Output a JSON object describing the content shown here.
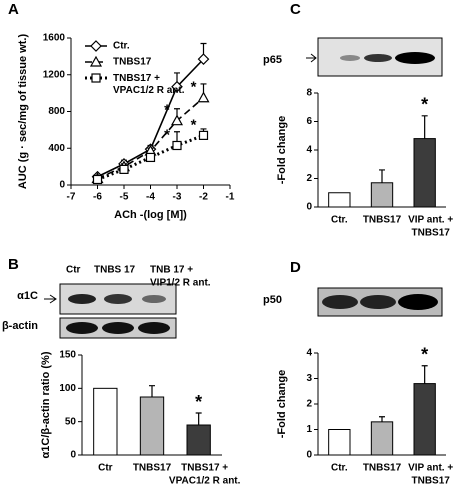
{
  "chart_data": [
    {
      "type": "line",
      "panel": "A",
      "ylabel": "AUC (g · sec/mg of tissue wt.)",
      "xlabel": "ACh -(log [M])",
      "x": [
        -6,
        -5,
        -4,
        -3,
        -2
      ],
      "xlim": [
        -7,
        -1
      ],
      "xticks": [
        -7,
        -6,
        -5,
        -4,
        -3,
        -2,
        -1
      ],
      "ylim": [
        0,
        1600
      ],
      "yticks": [
        0,
        400,
        800,
        1200,
        1600
      ],
      "series": [
        {
          "name": "Ctr.",
          "color": "#000000",
          "dash": "none",
          "marker": "diamond",
          "values": [
            90,
            230,
            390,
            1070,
            1370
          ],
          "errors": [
            20,
            40,
            40,
            150,
            170
          ]
        },
        {
          "name": "TNBS17",
          "color": "#000000",
          "dash": "7,4",
          "marker": "triangle",
          "values": [
            70,
            200,
            370,
            700,
            950
          ],
          "errors": [
            20,
            30,
            30,
            130,
            150
          ]
        },
        {
          "name": "TNBS17 + VPAC1/2 R ant.",
          "color": "#000000",
          "dash": "2,3",
          "marker": "square",
          "values": [
            60,
            170,
            300,
            430,
            540
          ],
          "errors": [
            20,
            30,
            40,
            150,
            70
          ]
        }
      ],
      "annotations": [
        {
          "text": "*",
          "series": "TNBS17",
          "x": -3
        },
        {
          "text": "*",
          "series": "TNBS17 + VPAC1/2 R ant.",
          "x": -3
        },
        {
          "text": "*",
          "series": "TNBS17",
          "x": -2
        },
        {
          "text": "*",
          "series": "TNBS17 + VPAC1/2 R ant.",
          "x": -2
        }
      ]
    },
    {
      "type": "bar",
      "panel": "B",
      "ylabel": "α1C/β-actin ratio (%)",
      "blot_header": [
        "Ctr",
        "TNBS 17",
        "TNB 17 +",
        "VIP1/2 R ant."
      ],
      "blot_labels": [
        "α1C",
        "β-actin"
      ],
      "categories": [
        [
          "Ctr"
        ],
        [
          "TNBS17"
        ],
        [
          "TNBS17 +",
          "VPAC1/2 R ant."
        ]
      ],
      "values": [
        100,
        87,
        45
      ],
      "errors": [
        0,
        17,
        18
      ],
      "colors": [
        "#ffffff",
        "#b5b5b5",
        "#3c3c3c"
      ],
      "ylim": [
        0,
        150
      ],
      "yticks": [
        0,
        50,
        100,
        150
      ],
      "annotations": [
        {
          "text": "*",
          "category": 2
        }
      ]
    },
    {
      "type": "bar",
      "panel": "C",
      "ylabel": "-Fold change",
      "blot_labels": [
        "p65"
      ],
      "categories": [
        [
          "Ctr."
        ],
        [
          "TNBS17"
        ],
        [
          "VIP ant. +",
          "TNBS17"
        ]
      ],
      "values": [
        1,
        1.7,
        4.8
      ],
      "errors": [
        0,
        0.9,
        1.6
      ],
      "colors": [
        "#ffffff",
        "#b5b5b5",
        "#3c3c3c"
      ],
      "ylim": [
        0,
        8
      ],
      "yticks": [
        0,
        2,
        4,
        6,
        8
      ],
      "annotations": [
        {
          "text": "*",
          "category": 2
        }
      ]
    },
    {
      "type": "bar",
      "panel": "D",
      "ylabel": "-Fold change",
      "blot_labels": [
        "p50"
      ],
      "categories": [
        [
          "Ctr."
        ],
        [
          "TNBS17"
        ],
        [
          "VIP ant. +",
          "TNBS17"
        ]
      ],
      "values": [
        1,
        1.3,
        2.8
      ],
      "errors": [
        0,
        0.2,
        0.7
      ],
      "colors": [
        "#ffffff",
        "#b5b5b5",
        "#3c3c3c"
      ],
      "ylim": [
        0,
        4
      ],
      "yticks": [
        0,
        1,
        2,
        3,
        4
      ],
      "annotations": [
        {
          "text": "*",
          "category": 2
        }
      ]
    }
  ]
}
